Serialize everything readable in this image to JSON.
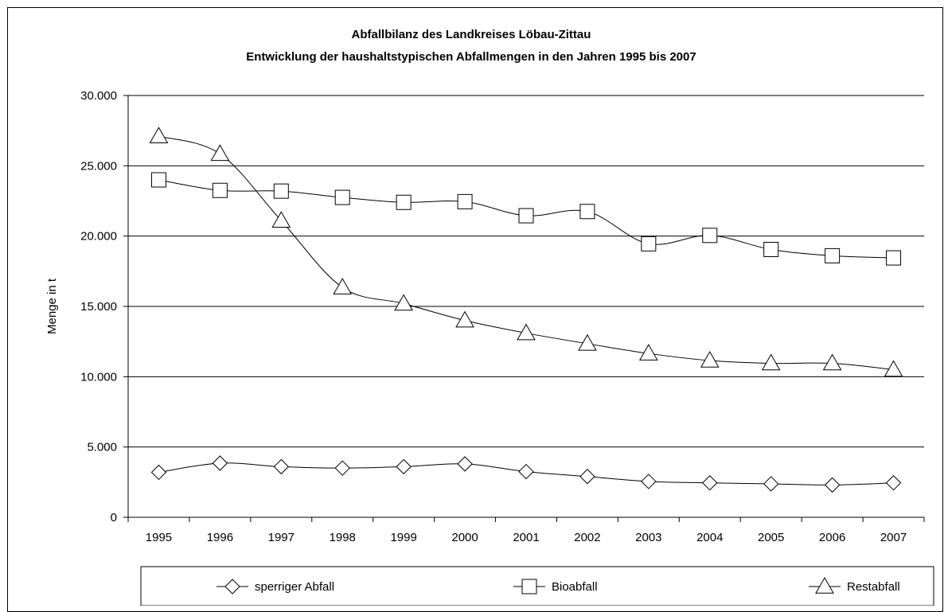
{
  "chart_data": {
    "type": "line",
    "title": "Abfallbilanz des Landkreises Löbau-Zittau",
    "subtitle": "Entwicklung der haushaltstypischen Abfallmengen in den Jahren 1995 bis 2007",
    "xlabel": "",
    "ylabel": "Menge in t",
    "ylim": [
      0,
      30000
    ],
    "y_ticks": [
      "0",
      "5.000",
      "10.000",
      "15.000",
      "20.000",
      "25.000",
      "30.000"
    ],
    "y_tick_values": [
      0,
      5000,
      10000,
      15000,
      20000,
      25000,
      30000
    ],
    "grid": "horizontal",
    "legend_position": "bottom",
    "categories": [
      "1995",
      "1996",
      "1997",
      "1998",
      "1999",
      "2000",
      "2001",
      "2002",
      "2003",
      "2004",
      "2005",
      "2006",
      "2007"
    ],
    "series": [
      {
        "name": "sperriger Abfall",
        "marker": "diamond",
        "values": [
          3200,
          3850,
          3600,
          3500,
          3600,
          3800,
          3250,
          2900,
          2550,
          2450,
          2380,
          2300,
          2450
        ]
      },
      {
        "name": "Bioabfall",
        "marker": "square",
        "values": [
          24000,
          23250,
          23200,
          22750,
          22400,
          22450,
          21450,
          21750,
          19450,
          20050,
          19050,
          18600,
          18450
        ]
      },
      {
        "name": "Restabfall",
        "marker": "triangle",
        "values": [
          27100,
          25850,
          21100,
          16350,
          15200,
          14000,
          13100,
          12350,
          11650,
          11150,
          10950,
          10950,
          10500
        ]
      }
    ]
  }
}
